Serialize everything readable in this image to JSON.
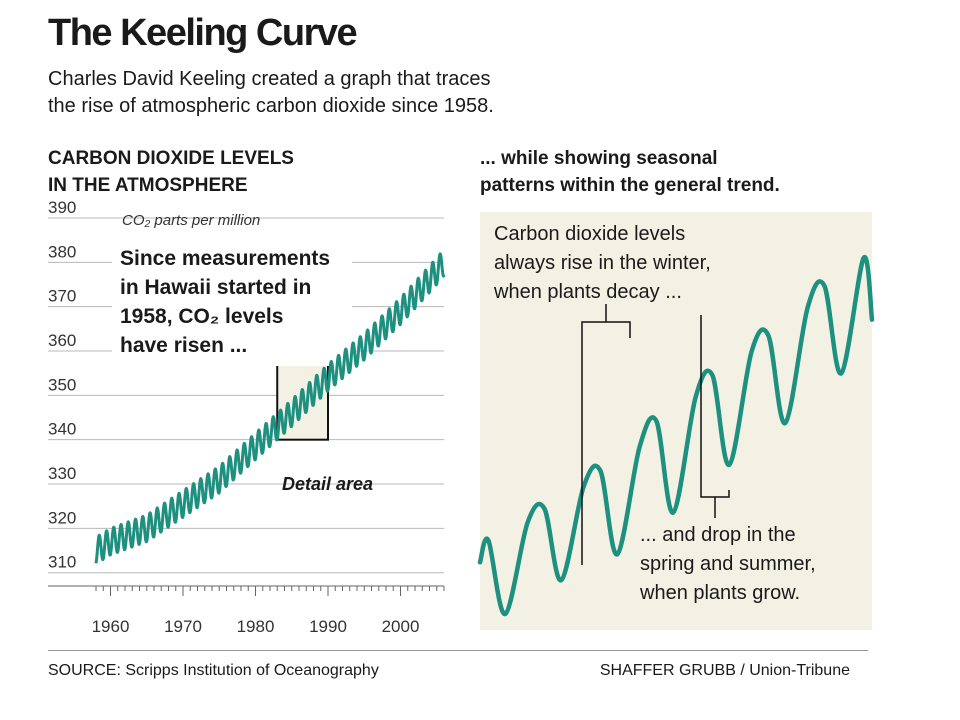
{
  "title": "The Keeling Curve",
  "subtitle_lines": [
    "Charles David Keeling created a graph that traces",
    "the rise of atmospheric carbon dioxide since 1958."
  ],
  "left_panel": {
    "heading_lines": [
      "CARBON DIOXIDE LEVELS",
      "IN THE ATMOSPHERE"
    ],
    "unit_label": "CO₂ parts per million",
    "callout_lines": [
      "Since measurements",
      "in Hawaii started in",
      "1958, CO₂ levels",
      "have risen ..."
    ],
    "detail_label": "Detail area"
  },
  "right_panel": {
    "heading_lines": [
      "... while showing seasonal",
      "patterns within the general trend."
    ],
    "rise_lines": [
      "Carbon dioxide levels",
      "always rise in the winter,",
      "when plants decay ..."
    ],
    "drop_lines": [
      "... and drop in the",
      "spring and summer,",
      "when plants grow."
    ]
  },
  "footer": {
    "source": "SOURCE: Scripps Institution of Oceanography",
    "credit": "SHAFFER GRUBB / Union-Tribune"
  },
  "colors": {
    "series": "#1e9080",
    "panel_bg": "#f3f1e4",
    "grid": "#b8b8b8"
  },
  "chart_data": [
    {
      "type": "line",
      "title": "CARBON DIOXIDE LEVELS IN THE ATMOSPHERE",
      "ylabel": "CO₂ parts per million",
      "xlim": [
        1958,
        2006
      ],
      "ylim": [
        307,
        390
      ],
      "xticks": [
        1960,
        1970,
        1980,
        1990,
        2000
      ],
      "yticks": [
        310,
        320,
        330,
        340,
        350,
        360,
        370,
        380,
        390
      ],
      "grid": true,
      "trend": {
        "x": [
          1958,
          1960,
          1965,
          1970,
          1975,
          1980,
          1985,
          1990,
          1995,
          2000,
          2005,
          2006
        ],
        "y": [
          315,
          317,
          320,
          325.5,
          331,
          338.5,
          346,
          354,
          361,
          369,
          378,
          380
        ]
      },
      "seasonal_amplitude": 3,
      "detail_area": {
        "x": [
          1983,
          1990
        ],
        "y": [
          340,
          357
        ]
      }
    },
    {
      "type": "line",
      "title": "... while showing seasonal patterns within the general trend.",
      "xlim": [
        1983,
        1990
      ],
      "series": [
        {
          "x": [
            1983.0,
            1983.15,
            1983.45,
            1983.85,
            1984.15,
            1984.45,
            1984.85,
            1985.15,
            1985.45,
            1985.85,
            1986.15,
            1986.45,
            1986.85,
            1987.15,
            1987.45,
            1987.85,
            1988.15,
            1988.45,
            1988.85,
            1989.15,
            1989.45,
            1989.85,
            1990.0
          ],
          "y": [
            342.8,
            343.9,
            340.2,
            344.8,
            345.5,
            341.9,
            346.6,
            347.4,
            343.2,
            348.6,
            349.9,
            345.3,
            351.1,
            352.2,
            347.7,
            353.4,
            354.2,
            349.8,
            355.6,
            356.7,
            352.3,
            358.1,
            355.0
          ]
        }
      ]
    }
  ]
}
